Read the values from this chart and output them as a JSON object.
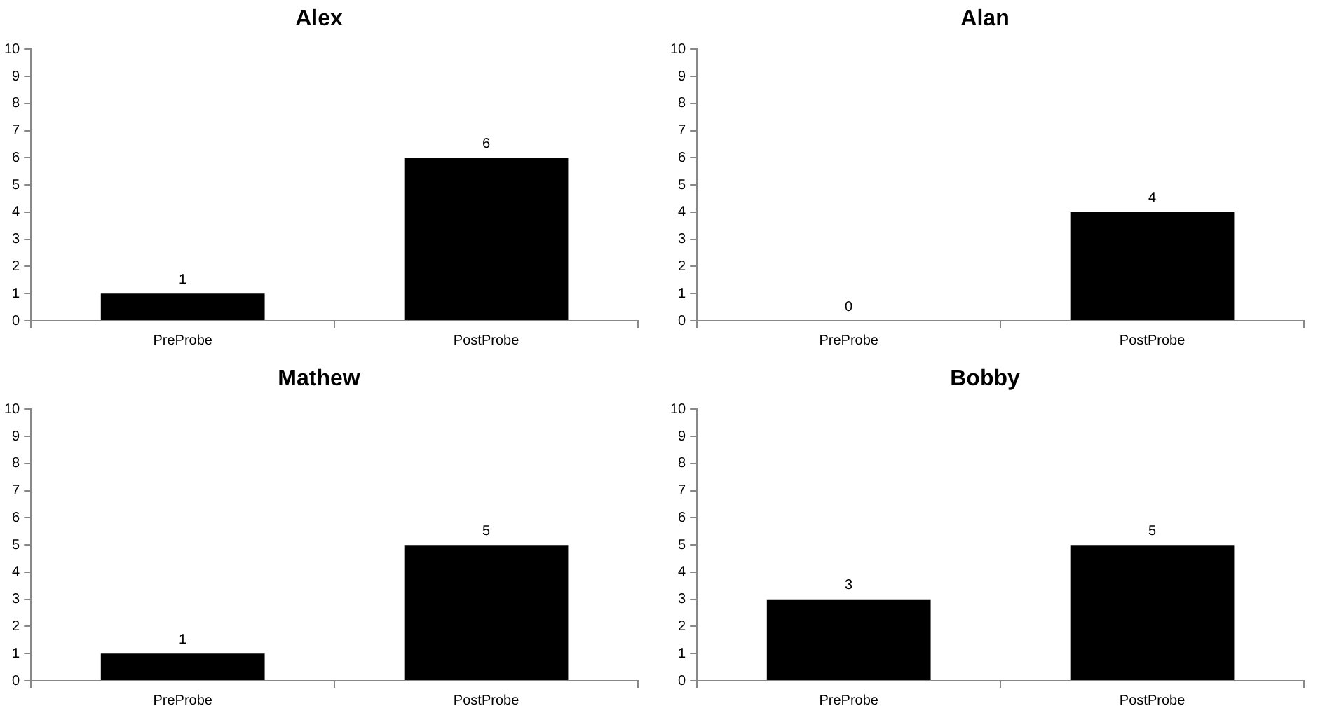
{
  "chart_data": [
    {
      "type": "bar",
      "title": "Alex",
      "categories": [
        "PreProbe",
        "PostProbe"
      ],
      "values": [
        1,
        6
      ],
      "color": "#000000",
      "ylim": [
        0,
        10
      ],
      "yticks": [
        0,
        1,
        2,
        3,
        4,
        5,
        6,
        7,
        8,
        9,
        10
      ],
      "data_labels": true
    },
    {
      "type": "bar",
      "title": "Alan",
      "categories": [
        "PreProbe",
        "PostProbe"
      ],
      "values": [
        0,
        4
      ],
      "color": "#000000",
      "ylim": [
        0,
        10
      ],
      "yticks": [
        0,
        1,
        2,
        3,
        4,
        5,
        6,
        7,
        8,
        9,
        10
      ],
      "data_labels": true
    },
    {
      "type": "bar",
      "title": "Mathew",
      "categories": [
        "PreProbe",
        "PostProbe"
      ],
      "values": [
        1,
        5
      ],
      "color": "#000000",
      "ylim": [
        0,
        10
      ],
      "yticks": [
        0,
        1,
        2,
        3,
        4,
        5,
        6,
        7,
        8,
        9,
        10
      ],
      "data_labels": true
    },
    {
      "type": "bar",
      "title": "Bobby",
      "categories": [
        "PreProbe",
        "PostProbe"
      ],
      "values": [
        3,
        5
      ],
      "color": "#000000",
      "ylim": [
        0,
        10
      ],
      "yticks": [
        0,
        1,
        2,
        3,
        4,
        5,
        6,
        7,
        8,
        9,
        10
      ],
      "data_labels": true
    }
  ]
}
